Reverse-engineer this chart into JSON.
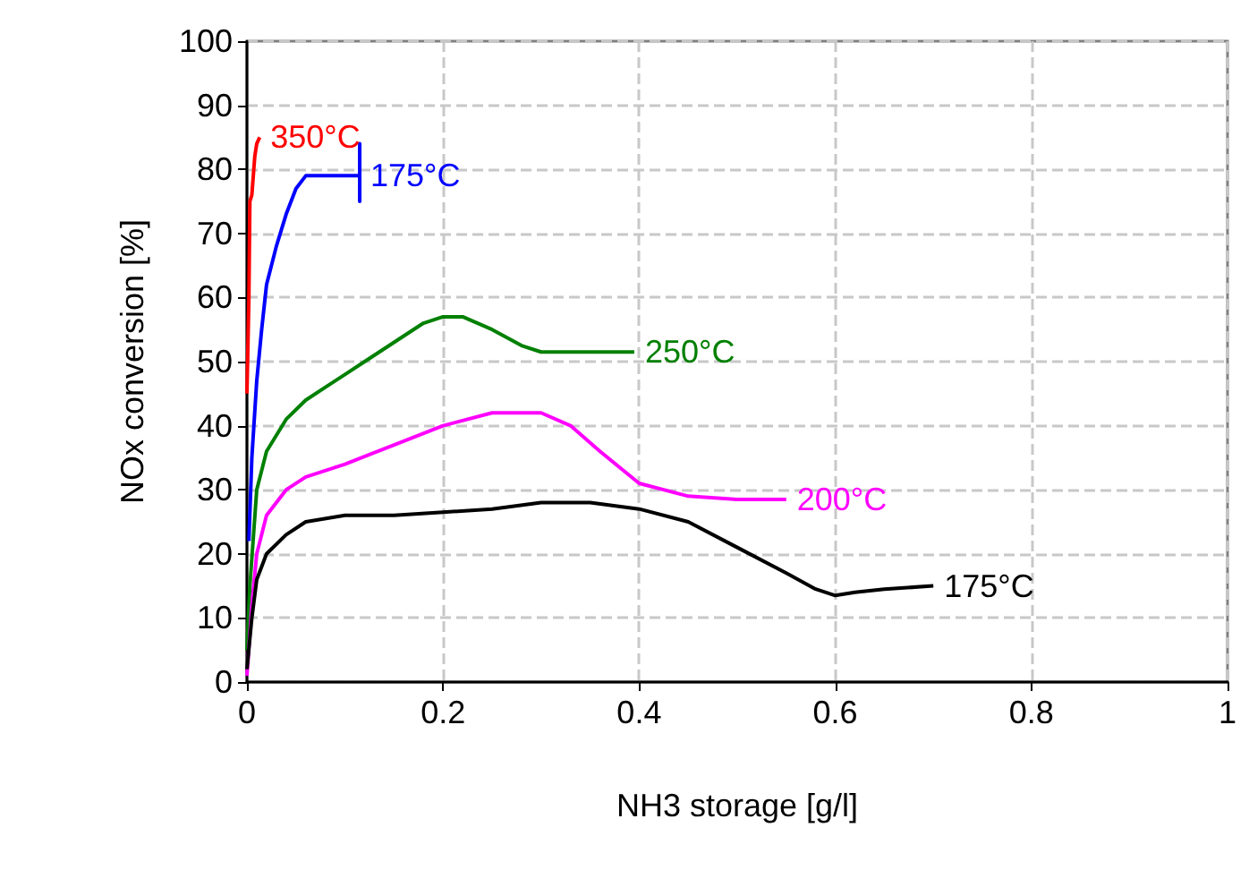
{
  "chart_data": {
    "type": "line",
    "xlabel": "NH3 storage [g/l]",
    "ylabel": "NOx conversion [%]",
    "xlim": [
      0,
      1
    ],
    "xticks": [
      0,
      0.2,
      0.4,
      0.6,
      0.8,
      1
    ],
    "ylim": [
      0,
      100
    ],
    "yticks": [
      0,
      10,
      20,
      30,
      40,
      50,
      60,
      70,
      80,
      90,
      100
    ],
    "grid": true,
    "legend": false,
    "marker": "none",
    "line_style": "solid",
    "series": [
      {
        "name": "350°C",
        "color": "#ff0000",
        "x": [
          0,
          0.002,
          0.003,
          0.005,
          0.007,
          0.008,
          0.01,
          0.013
        ],
        "values": [
          45,
          60,
          75,
          76,
          80,
          82,
          84,
          85
        ]
      },
      {
        "name": "175°C",
        "color": "#0000ff",
        "x": [
          0.002,
          0.005,
          0.01,
          0.015,
          0.02,
          0.03,
          0.04,
          0.05,
          0.06,
          0.07,
          0.09,
          0.115,
          0.115,
          0.115,
          0.115
        ],
        "values": [
          22,
          35,
          47,
          55,
          62,
          68,
          73,
          77,
          79,
          79,
          79,
          79,
          84,
          75,
          79
        ]
      },
      {
        "name": "250°C",
        "color": "#008000",
        "x": [
          0,
          0.003,
          0.01,
          0.02,
          0.04,
          0.06,
          0.08,
          0.1,
          0.12,
          0.15,
          0.18,
          0.2,
          0.22,
          0.25,
          0.28,
          0.3,
          0.35,
          0.395
        ],
        "values": [
          5,
          15,
          30,
          36,
          41,
          44,
          46,
          48,
          50,
          53,
          56,
          57,
          57,
          55,
          52.5,
          51.5,
          51.5,
          51.5
        ]
      },
      {
        "name": "200°C",
        "color": "#ff00ff",
        "x": [
          0,
          0.005,
          0.01,
          0.02,
          0.04,
          0.06,
          0.1,
          0.15,
          0.2,
          0.25,
          0.3,
          0.33,
          0.36,
          0.4,
          0.45,
          0.5,
          0.55
        ],
        "values": [
          1,
          12,
          20,
          26,
          30,
          32,
          34,
          37,
          40,
          42,
          42,
          40,
          36,
          31,
          29,
          28.5,
          28.5
        ]
      },
      {
        "name": "175°C",
        "color": "#000000",
        "x": [
          0,
          0.005,
          0.01,
          0.02,
          0.04,
          0.06,
          0.1,
          0.15,
          0.2,
          0.25,
          0.3,
          0.35,
          0.4,
          0.45,
          0.5,
          0.55,
          0.58,
          0.6,
          0.62,
          0.65,
          0.7
        ],
        "values": [
          2,
          10,
          16,
          20,
          23,
          25,
          26,
          26,
          26.5,
          27,
          28,
          28,
          27,
          25,
          21,
          17,
          14.5,
          13.5,
          14,
          14.5,
          15
        ]
      }
    ]
  }
}
